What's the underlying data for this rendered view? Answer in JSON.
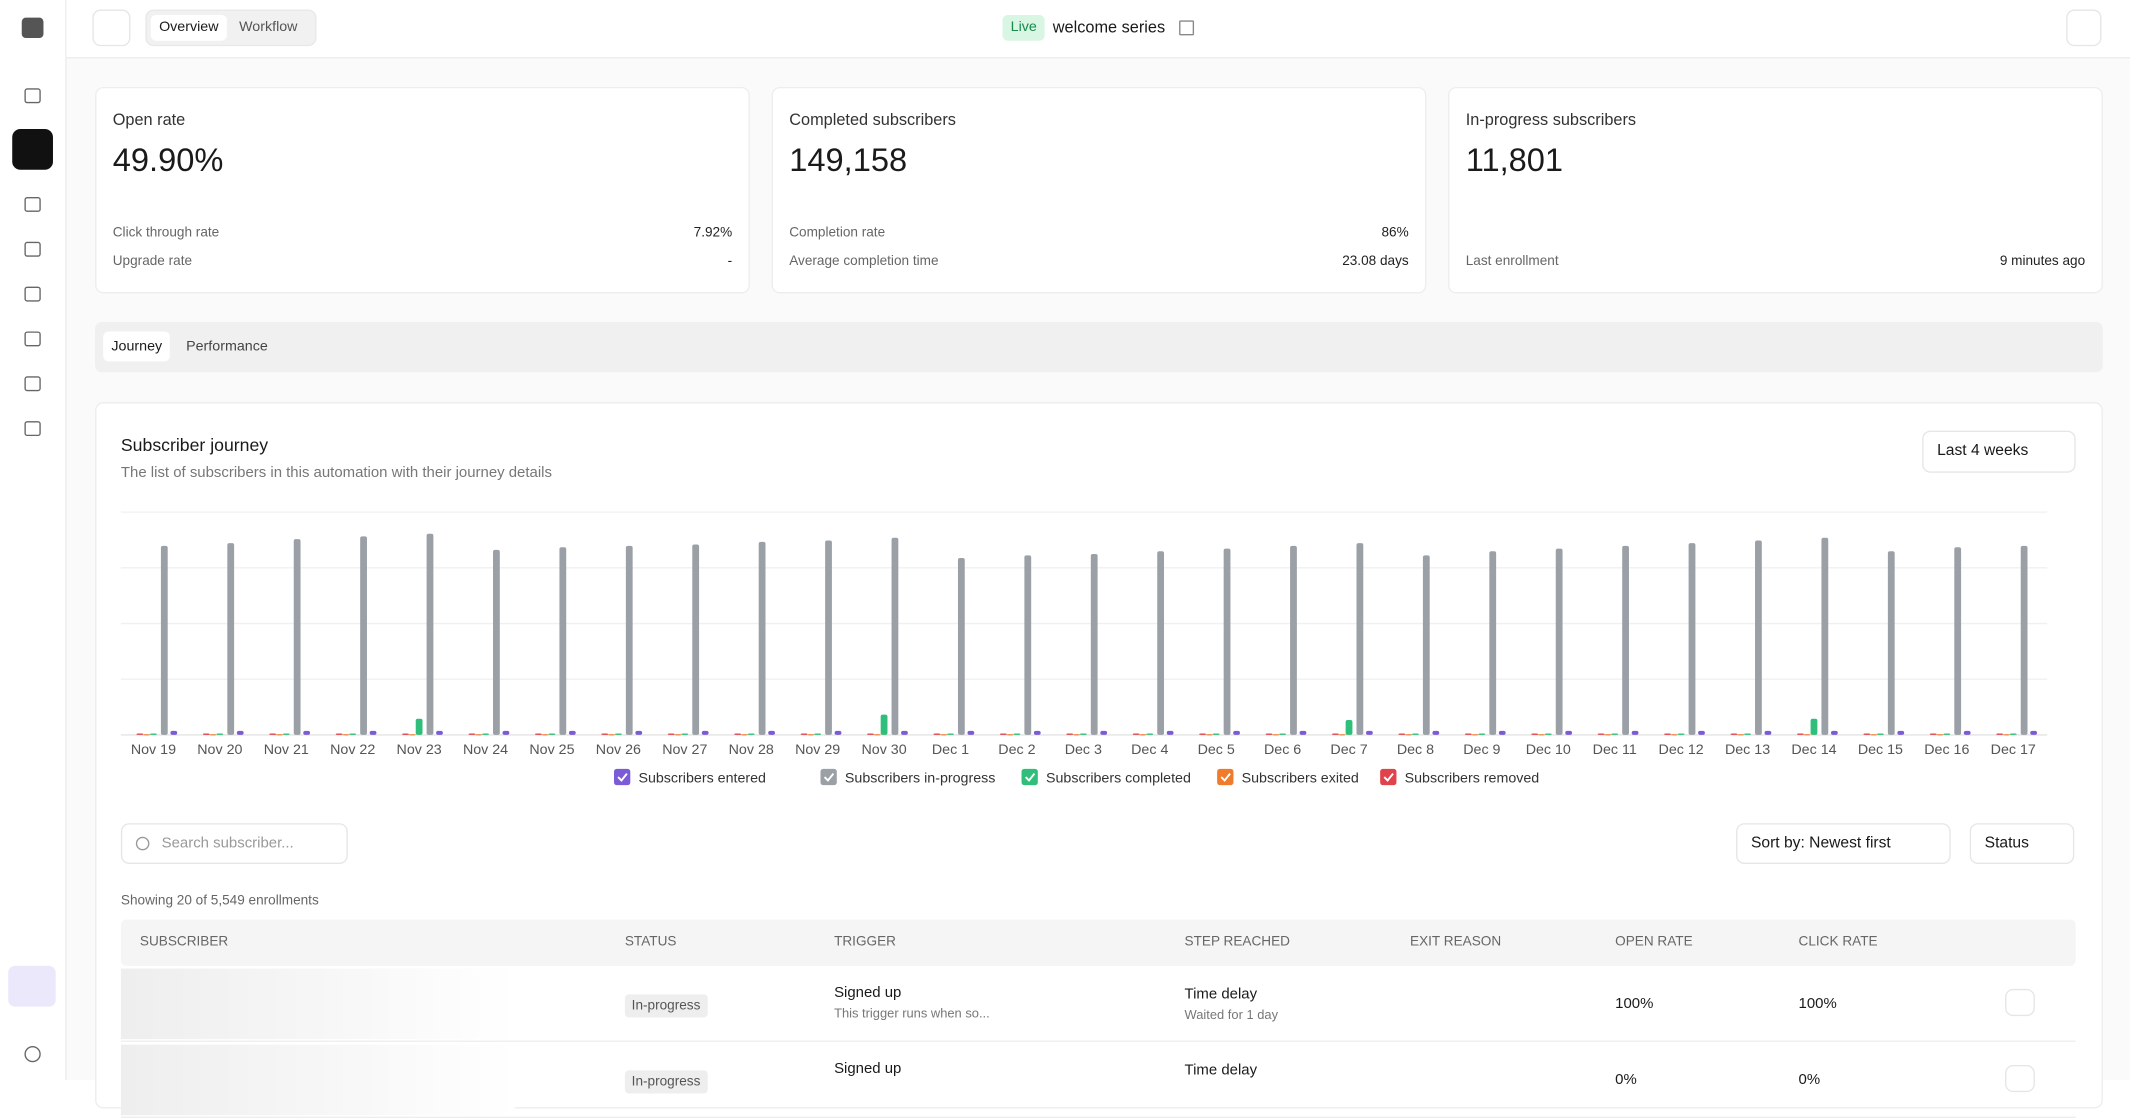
{
  "header": {
    "tabs": [
      "Overview",
      "Workflow"
    ],
    "status": "Live",
    "title": "welcome series"
  },
  "kpis": [
    {
      "label": "Open rate",
      "value": "49.90%",
      "details": [
        {
          "label": "Click through rate",
          "value": "7.92%"
        },
        {
          "label": "Upgrade rate",
          "value": "-"
        }
      ]
    },
    {
      "label": "Completed subscribers",
      "value": "149,158",
      "details": [
        {
          "label": "Completion rate",
          "value": "86%"
        },
        {
          "label": "Average completion time",
          "value": "23.08 days"
        }
      ]
    },
    {
      "label": "In-progress subscribers",
      "value": "11,801",
      "details": [
        {
          "label": "Last enrollment",
          "value": "9 minutes ago"
        }
      ]
    }
  ],
  "section_tabs": [
    "Journey",
    "Performance"
  ],
  "journey": {
    "title": "Subscriber journey",
    "subtitle": "The list of subscribers in this automation with their journey details",
    "range": "Last 4 weeks"
  },
  "chart_data": {
    "type": "bar",
    "categories": [
      "Nov 19",
      "Nov 20",
      "Nov 21",
      "Nov 22",
      "Nov 23",
      "Nov 24",
      "Nov 25",
      "Nov 26",
      "Nov 27",
      "Nov 28",
      "Nov 29",
      "Nov 30",
      "Dec 1",
      "Dec 2",
      "Dec 3",
      "Dec 4",
      "Dec 5",
      "Dec 6",
      "Dec 7",
      "Dec 8",
      "Dec 9",
      "Dec 10",
      "Dec 11",
      "Dec 12",
      "Dec 13",
      "Dec 14",
      "Dec 15",
      "Dec 16",
      "Dec 17"
    ],
    "ylim": [
      0,
      165
    ],
    "series": [
      {
        "name": "Subscribers entered",
        "color": "#7c5cd6",
        "values": [
          3,
          3,
          3,
          3,
          3,
          3,
          3,
          3,
          3,
          3,
          3,
          3,
          3,
          3,
          3,
          3,
          3,
          3,
          3,
          3,
          3,
          3,
          3,
          3,
          3,
          3,
          3,
          3,
          3
        ]
      },
      {
        "name": "Subscribers in-progress",
        "color": "#9aa0a6",
        "values": [
          140,
          142,
          145,
          147,
          149,
          137,
          139,
          140,
          141,
          143,
          144,
          146,
          131,
          133,
          134,
          136,
          138,
          140,
          142,
          133,
          136,
          138,
          140,
          142,
          144,
          146,
          136,
          139,
          140
        ]
      },
      {
        "name": "Subscribers completed",
        "color": "#2fbf7a",
        "values": [
          1,
          1,
          1,
          1,
          12,
          1,
          1,
          1,
          1,
          1,
          1,
          15,
          1,
          1,
          1,
          1,
          1,
          1,
          11,
          1,
          1,
          1,
          1,
          1,
          1,
          12,
          1,
          1,
          1
        ]
      },
      {
        "name": "Subscribers exited",
        "color": "#f07b2c",
        "values": [
          0.5,
          0.5,
          0.5,
          0.5,
          0.5,
          0.5,
          0.5,
          0.5,
          0.5,
          0.5,
          0.5,
          0.5,
          0.5,
          0.5,
          0.5,
          0.5,
          0.5,
          0.5,
          0.5,
          0.5,
          0.5,
          0.5,
          0.5,
          0.5,
          0.5,
          0.5,
          0.5,
          0.5,
          0.5
        ]
      },
      {
        "name": "Subscribers removed",
        "color": "#e0434b",
        "values": [
          1,
          1,
          1,
          1,
          1,
          1,
          1,
          1,
          1,
          1,
          1,
          1,
          1,
          1,
          1,
          1,
          1,
          1,
          1,
          1,
          1,
          1,
          1,
          1,
          1,
          1,
          1,
          1,
          1
        ]
      }
    ]
  },
  "table": {
    "search_placeholder": "Search subscriber...",
    "sort": "Sort by: Newest first",
    "status_filter": "Status",
    "summary": "Showing 20 of 5,549 enrollments",
    "columns": [
      "SUBSCRIBER",
      "STATUS",
      "TRIGGER",
      "STEP REACHED",
      "EXIT REASON",
      "OPEN RATE",
      "CLICK RATE"
    ],
    "rows": [
      {
        "status": "In-progress",
        "trigger": "Signed up",
        "trigger_note": "This trigger runs when so...",
        "step": "Time delay",
        "step_note": "Waited for 1 day",
        "open_rate": "100%",
        "click_rate": "100%"
      },
      {
        "status": "In-progress",
        "trigger": "Signed up",
        "step": "Time delay",
        "open_rate": "0%",
        "click_rate": "0%"
      }
    ]
  }
}
